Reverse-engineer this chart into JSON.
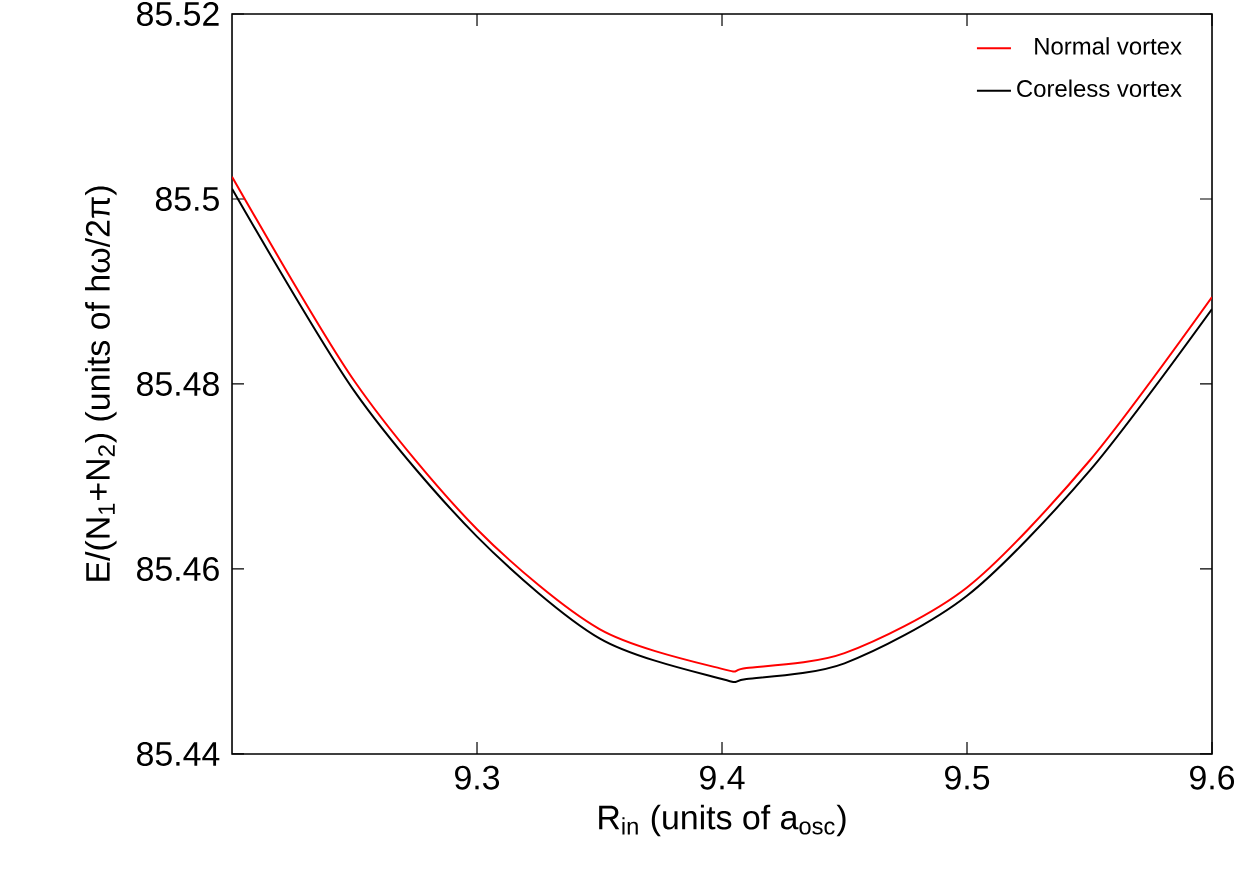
{
  "chart_data": {
    "type": "line",
    "xlabel": "R$_{in}$ (units of a$_{osc}$)",
    "ylabel": "E/(N$_{1}$+N$_{2}$) (units of hω/2π)",
    "x": [
      9.2,
      9.25,
      9.3,
      9.35,
      9.4,
      9.41,
      9.45,
      9.5,
      9.55,
      9.6
    ],
    "series": [
      {
        "name": "Normal vortex",
        "color": "#ff0000",
        "values": [
          85.5024,
          85.4803,
          85.4643,
          85.4535,
          85.4492,
          85.4493,
          85.4509,
          85.458,
          85.4717,
          85.4894
        ]
      },
      {
        "name": "Coreless vortex",
        "color": "#000000",
        "values": [
          85.5011,
          85.4792,
          85.4635,
          85.4525,
          85.4481,
          85.4481,
          85.4498,
          85.4571,
          85.4706,
          85.4881
        ]
      }
    ],
    "xlim": [
      9.2,
      9.6
    ],
    "ylim": [
      85.44,
      85.52
    ],
    "xticks": [
      9.3,
      9.4,
      9.5,
      9.6
    ],
    "yticks": [
      85.44,
      85.46,
      85.48,
      85.5,
      85.52
    ],
    "legend": "top right",
    "grid": false,
    "marker": "none",
    "line_style": "solid"
  }
}
